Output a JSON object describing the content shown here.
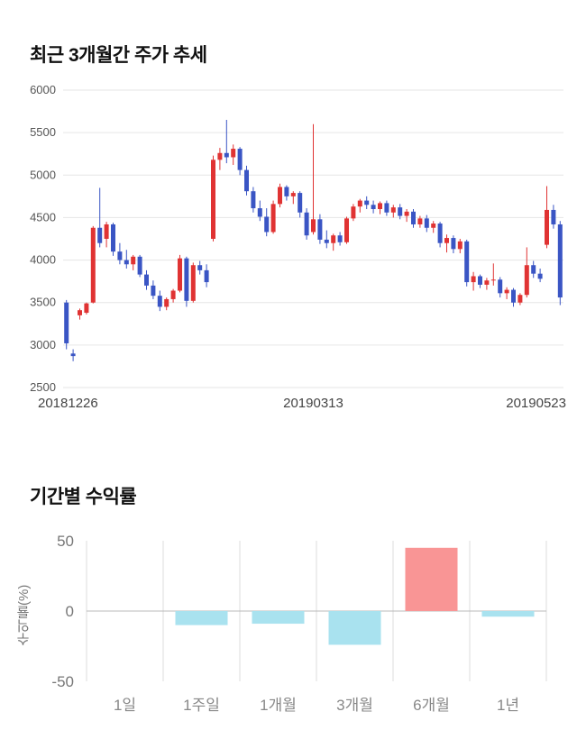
{
  "sections": {
    "price_trend": {
      "title": "최근 3개월간 주가 추세"
    },
    "returns": {
      "title": "기간별 수익률"
    }
  },
  "chart_data": [
    {
      "type": "candlestick",
      "title": "최근 3개월간 주가 추세",
      "ylim": [
        2500,
        6000
      ],
      "y_ticks": [
        6000,
        5500,
        5000,
        4500,
        4000,
        3500,
        3000,
        2500
      ],
      "x_labels": [
        "20181226",
        "20190313",
        "20190523"
      ],
      "grid": "on",
      "colors": {
        "up": "#e03333",
        "down": "#3a55c4",
        "grid": "#e6e6e6",
        "tick_text": "#555555",
        "date_text": "#444444"
      },
      "ohlc": [
        [
          3500,
          3530,
          2950,
          3020
        ],
        [
          2900,
          2950,
          2810,
          2870
        ],
        [
          3350,
          3430,
          3300,
          3410
        ],
        [
          3380,
          3500,
          3360,
          3490
        ],
        [
          3500,
          4400,
          3490,
          4380
        ],
        [
          4380,
          4850,
          4150,
          4200
        ],
        [
          4250,
          4450,
          4150,
          4420
        ],
        [
          4420,
          4440,
          4050,
          4100
        ],
        [
          4100,
          4200,
          3950,
          4000
        ],
        [
          4000,
          4120,
          3900,
          3950
        ],
        [
          3950,
          4060,
          3880,
          4040
        ],
        [
          4040,
          4060,
          3800,
          3830
        ],
        [
          3830,
          3880,
          3650,
          3700
        ],
        [
          3700,
          3760,
          3540,
          3580
        ],
        [
          3580,
          3640,
          3400,
          3450
        ],
        [
          3450,
          3560,
          3410,
          3540
        ],
        [
          3540,
          3660,
          3500,
          3640
        ],
        [
          3640,
          4060,
          3620,
          4020
        ],
        [
          4020,
          4040,
          3450,
          3520
        ],
        [
          3520,
          3970,
          3500,
          3940
        ],
        [
          3940,
          3990,
          3830,
          3880
        ],
        [
          3880,
          3950,
          3680,
          3740
        ],
        [
          4250,
          5230,
          4220,
          5180
        ],
        [
          5180,
          5320,
          5060,
          5260
        ],
        [
          5260,
          5650,
          5140,
          5210
        ],
        [
          5210,
          5360,
          5120,
          5310
        ],
        [
          5310,
          5330,
          5000,
          5060
        ],
        [
          5060,
          5110,
          4760,
          4810
        ],
        [
          4810,
          4860,
          4560,
          4610
        ],
        [
          4610,
          4700,
          4460,
          4510
        ],
        [
          4510,
          4610,
          4280,
          4330
        ],
        [
          4330,
          4700,
          4310,
          4660
        ],
        [
          4660,
          4900,
          4620,
          4860
        ],
        [
          4860,
          4880,
          4700,
          4750
        ],
        [
          4750,
          4810,
          4660,
          4790
        ],
        [
          4790,
          4810,
          4500,
          4560
        ],
        [
          4560,
          4610,
          4240,
          4290
        ],
        [
          4330,
          5600,
          4300,
          4480
        ],
        [
          4480,
          4540,
          4190,
          4240
        ],
        [
          4240,
          4350,
          4140,
          4200
        ],
        [
          4200,
          4310,
          4110,
          4290
        ],
        [
          4290,
          4330,
          4170,
          4210
        ],
        [
          4210,
          4510,
          4190,
          4490
        ],
        [
          4490,
          4660,
          4460,
          4630
        ],
        [
          4630,
          4720,
          4560,
          4700
        ],
        [
          4700,
          4750,
          4600,
          4650
        ],
        [
          4650,
          4700,
          4550,
          4600
        ],
        [
          4600,
          4690,
          4540,
          4670
        ],
        [
          4670,
          4700,
          4520,
          4560
        ],
        [
          4560,
          4650,
          4500,
          4620
        ],
        [
          4620,
          4660,
          4480,
          4520
        ],
        [
          4520,
          4600,
          4450,
          4570
        ],
        [
          4570,
          4600,
          4380,
          4420
        ],
        [
          4420,
          4520,
          4380,
          4490
        ],
        [
          4490,
          4530,
          4330,
          4380
        ],
        [
          4380,
          4460,
          4320,
          4430
        ],
        [
          4430,
          4450,
          4150,
          4200
        ],
        [
          4200,
          4300,
          4090,
          4260
        ],
        [
          4260,
          4290,
          4080,
          4130
        ],
        [
          4130,
          4250,
          4080,
          4220
        ],
        [
          4220,
          4240,
          3690,
          3740
        ],
        [
          3740,
          3860,
          3640,
          3810
        ],
        [
          3810,
          3830,
          3670,
          3710
        ],
        [
          3710,
          3790,
          3650,
          3760
        ],
        [
          3760,
          3960,
          3700,
          3770
        ],
        [
          3770,
          3800,
          3560,
          3610
        ],
        [
          3610,
          3680,
          3540,
          3650
        ],
        [
          3650,
          3670,
          3450,
          3500
        ],
        [
          3500,
          3610,
          3470,
          3590
        ],
        [
          3590,
          4150,
          3560,
          3940
        ],
        [
          3940,
          3990,
          3790,
          3840
        ],
        [
          3840,
          3900,
          3740,
          3780
        ],
        [
          4180,
          4870,
          4140,
          4590
        ],
        [
          4590,
          4650,
          4370,
          4420
        ],
        [
          4420,
          4460,
          3470,
          3560
        ]
      ]
    },
    {
      "type": "bar",
      "title": "기간별 수익률",
      "ylabel": "수익률(%)",
      "categories": [
        "1일",
        "1주일",
        "1개월",
        "3개월",
        "6개월",
        "1년"
      ],
      "values": [
        0,
        -10,
        -9,
        -24,
        45,
        -4
      ],
      "ylim": [
        -50,
        50
      ],
      "y_ticks": [
        50,
        0,
        -50
      ],
      "grid": "on",
      "legend": "none",
      "colors": {
        "positive": "#f99595",
        "negative": "#a9e2ef",
        "grid": "#dddddd",
        "zero_line": "#bbbbbb",
        "tick_text": "#777777",
        "category_text": "#888888"
      }
    }
  ]
}
